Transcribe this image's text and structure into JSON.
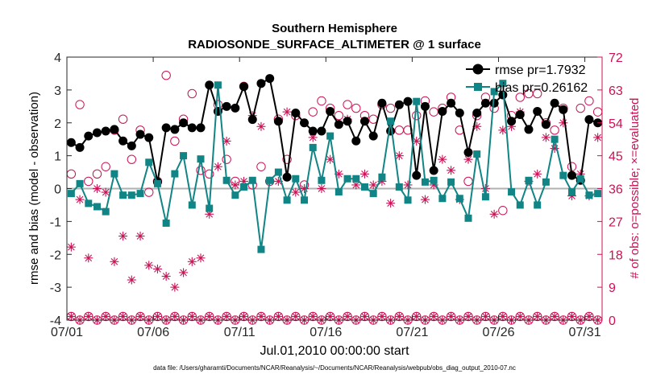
{
  "chart_data": {
    "type": "line",
    "title": "Southern Hemisphere",
    "subtitle": "RADIOSONDE_SURFACE_ALTIMETER @ 1 surface",
    "xlabel": "Jul.01,2010 00:00:00 start",
    "ylabel": "rmse and bias (model - observation)",
    "y2label": "# of obs: o=possible; ×=evaluated",
    "footnote": "data file: /Users/gharamti/Documents/NCAR/Reanalysis/~/Documents/NCAR/Reanalysis/webpub/obs_diag_output_2010-07.nc",
    "xlim": [
      1,
      32
    ],
    "ylim": [
      -4,
      4
    ],
    "y2lim": [
      0,
      72
    ],
    "x_ticks": [
      1,
      6,
      11,
      16,
      21,
      26,
      31
    ],
    "x_tick_labels": [
      "07/01",
      "07/06",
      "07/11",
      "07/16",
      "07/21",
      "07/26",
      "07/31"
    ],
    "y_ticks": [
      -4,
      -3,
      -2,
      -1,
      0,
      1,
      2,
      3,
      4
    ],
    "y_tick_labels": [
      "-4",
      "-3",
      "-2",
      "-1",
      "0",
      "1",
      "2",
      "3",
      "4"
    ],
    "y2_ticks": [
      0,
      9,
      18,
      27,
      36,
      45,
      54,
      63,
      72
    ],
    "y2_tick_labels": [
      "0",
      "9",
      "18",
      "27",
      "36",
      "45",
      "54",
      "63",
      "72"
    ],
    "legend": [
      "rmse pr=1.7932",
      "bias pr=0.26162"
    ],
    "legend_position": "top-right",
    "colors": {
      "rmse": "#000000",
      "bias": "#118585",
      "obs": "#cc1155",
      "zero": "#b0b0b0"
    },
    "x": [
      1.25,
      1.75,
      2.25,
      2.75,
      3.25,
      3.75,
      4.25,
      4.75,
      5.25,
      5.75,
      6.25,
      6.75,
      7.25,
      7.75,
      8.25,
      8.75,
      9.25,
      9.75,
      10.25,
      10.75,
      11.25,
      11.75,
      12.25,
      12.75,
      13.25,
      13.75,
      14.25,
      14.75,
      15.25,
      15.75,
      16.25,
      16.75,
      17.25,
      17.75,
      18.25,
      18.75,
      19.25,
      19.75,
      20.25,
      20.75,
      21.25,
      21.75,
      22.25,
      22.75,
      23.25,
      23.75,
      24.25,
      24.75,
      25.25,
      25.75,
      26.25,
      26.75,
      27.25,
      27.75,
      28.25,
      28.75,
      29.25,
      29.75,
      30.25,
      30.75,
      31.25,
      31.75
    ],
    "series": [
      {
        "name": "rmse",
        "values": [
          1.4,
          1.25,
          1.6,
          1.7,
          1.75,
          1.8,
          1.45,
          1.3,
          1.65,
          1.55,
          0.2,
          1.85,
          1.8,
          2.0,
          1.85,
          1.85,
          3.15,
          2.35,
          2.5,
          2.45,
          3.1,
          2.1,
          3.2,
          3.35,
          2.05,
          0.35,
          2.3,
          2.0,
          1.75,
          1.75,
          2.35,
          1.95,
          2.05,
          1.45,
          2.05,
          1.6,
          2.6,
          1.75,
          2.55,
          2.65,
          0.4,
          2.5,
          0.55,
          2.35,
          2.6,
          2.3,
          1.1,
          2.3,
          2.6,
          2.6,
          2.85,
          2.05,
          2.25,
          1.8,
          2.35,
          1.95,
          2.6,
          2.4,
          0.4,
          0.25,
          2.1,
          2.0
        ]
      },
      {
        "name": "bias",
        "values": [
          -0.15,
          0.15,
          -0.45,
          -0.55,
          -0.7,
          0.45,
          -0.2,
          -0.2,
          -0.15,
          0.8,
          0.15,
          -1.05,
          0.45,
          1.0,
          -0.5,
          0.9,
          -0.6,
          3.15,
          0.25,
          -0.2,
          0.05,
          0.25,
          -1.85,
          0.25,
          0.5,
          -0.35,
          0.3,
          -0.35,
          1.25,
          0.25,
          1.6,
          -0.1,
          0.3,
          0.3,
          0.05,
          -0.15,
          0.35,
          2.05,
          0.05,
          -0.35,
          2.65,
          0.2,
          0.25,
          -0.3,
          0.2,
          -0.3,
          -0.9,
          1.05,
          -0.25,
          2.95,
          3.2,
          -0.1,
          -0.5,
          0.25,
          -0.5,
          0.2,
          1.5,
          0.4,
          -0.1,
          0.3,
          -0.2,
          -0.15
        ]
      },
      {
        "name": "obs_possible",
        "axis": "y2",
        "values": [
          40,
          59,
          38,
          40,
          42,
          52,
          55,
          44,
          52,
          35,
          38,
          67,
          49,
          55,
          62,
          41,
          40,
          59,
          44,
          38,
          64,
          37,
          42,
          38,
          55,
          44,
          56,
          37,
          57,
          60,
          58,
          56,
          59,
          58,
          56,
          55,
          59,
          58,
          52,
          52,
          56,
          60,
          57,
          58,
          61,
          52,
          38,
          56,
          61,
          58,
          30,
          56,
          61,
          62,
          62,
          54,
          52,
          58,
          42,
          58,
          60,
          57
        ]
      },
      {
        "name": "obs_evaluated",
        "axis": "y2",
        "values": [
          20,
          33,
          17,
          36,
          35,
          16,
          23,
          11,
          23,
          15,
          14,
          12,
          9,
          13,
          16,
          17,
          29,
          42,
          49,
          37,
          38,
          56,
          53,
          38,
          38,
          57,
          35,
          36,
          50,
          36,
          44,
          40,
          55,
          37,
          40,
          37,
          38,
          32,
          45,
          37,
          49,
          33,
          37,
          44,
          41,
          33,
          44,
          53,
          36,
          29,
          52,
          53,
          57,
          38,
          40,
          50,
          47,
          54,
          34,
          40,
          34,
          50
        ]
      },
      {
        "name": "obs_possible_bottom",
        "axis": "y2",
        "values": [
          1,
          0,
          1,
          0,
          1,
          0,
          1,
          0,
          1,
          0,
          1,
          0,
          1,
          0,
          1,
          0,
          1,
          0,
          1,
          0,
          1,
          0,
          1,
          0,
          1,
          0,
          1,
          0,
          1,
          0,
          1,
          0,
          1,
          0,
          1,
          0,
          1,
          0,
          1,
          0,
          1,
          0,
          1,
          0,
          1,
          0,
          1,
          0,
          1,
          0,
          1,
          0,
          1,
          0,
          1,
          0,
          1,
          0,
          1,
          0,
          1,
          0
        ]
      }
    ]
  }
}
